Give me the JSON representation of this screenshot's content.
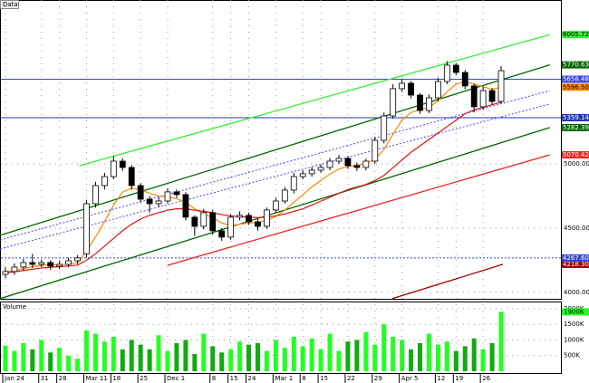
{
  "chart_data": {
    "type": "candlestick",
    "title": "Data",
    "categories": [
      "Jan 24",
      null,
      null,
      null,
      "31",
      null,
      "28",
      null,
      null,
      "Mar 11",
      null,
      null,
      "18",
      null,
      null,
      "25",
      null,
      null,
      "Dec 1",
      null,
      null,
      null,
      null,
      "8",
      null,
      "15",
      null,
      "24",
      null,
      null,
      "Mar 1",
      null,
      null,
      "8",
      null,
      "15",
      null,
      null,
      "22",
      null,
      null,
      "29",
      null,
      null,
      "Apr 5",
      null,
      null,
      null,
      "12",
      null,
      "19",
      null,
      null,
      "26",
      null,
      null
    ],
    "open": [
      4140,
      4162,
      4197,
      4232,
      4218,
      4232,
      4204,
      4218,
      4246,
      4300,
      4690,
      4831,
      4901,
      5021,
      4972,
      4831,
      4725,
      4690,
      4711,
      4782,
      4761,
      4585,
      4514,
      4620,
      4479,
      4430,
      4585,
      4599,
      4549,
      4514,
      4641,
      4711,
      4796,
      4901,
      4923,
      4951,
      4972,
      5021,
      5042,
      4986,
      4972,
      5021,
      5183,
      5373,
      5585,
      5627,
      5535,
      5415,
      5514,
      5641,
      5768,
      5711,
      5606,
      5444,
      5570,
      5486
    ],
    "high": [
      4195,
      4225,
      4260,
      4300,
      4255,
      4250,
      4245,
      4270,
      4290,
      4720,
      4860,
      4930,
      5060,
      5045,
      4990,
      4850,
      4750,
      4740,
      4810,
      4800,
      4780,
      4600,
      4650,
      4640,
      4500,
      4610,
      4630,
      4620,
      4570,
      4660,
      4735,
      4820,
      4930,
      4950,
      4975,
      4995,
      5045,
      5070,
      5060,
      5010,
      5040,
      5210,
      5400,
      5620,
      5660,
      5645,
      5550,
      5540,
      5670,
      5800,
      5785,
      5730,
      5625,
      5600,
      5590,
      5760
    ],
    "low": [
      4110,
      4135,
      4170,
      4190,
      4195,
      4175,
      4180,
      4195,
      4220,
      4270,
      4660,
      4800,
      4880,
      4945,
      4800,
      4700,
      4620,
      4665,
      4690,
      4735,
      4560,
      4440,
      4490,
      4450,
      4400,
      4410,
      4560,
      4525,
      4480,
      4495,
      4620,
      4690,
      4770,
      4880,
      4900,
      4930,
      4950,
      5000,
      4960,
      4945,
      4950,
      5000,
      5160,
      5350,
      5560,
      5510,
      5390,
      5395,
      5490,
      5620,
      5690,
      5580,
      5400,
      5420,
      5460,
      5470
    ],
    "close": [
      4162,
      4197,
      4232,
      4218,
      4232,
      4204,
      4218,
      4246,
      4268,
      4690,
      4831,
      4901,
      5021,
      4972,
      4831,
      4725,
      4690,
      4711,
      4782,
      4761,
      4585,
      4514,
      4620,
      4479,
      4430,
      4585,
      4599,
      4549,
      4514,
      4641,
      4711,
      4796,
      4901,
      4923,
      4951,
      4972,
      5021,
      5042,
      4986,
      4972,
      5021,
      5183,
      5373,
      5585,
      5627,
      5535,
      5415,
      5514,
      5641,
      5768,
      5711,
      5606,
      5444,
      5570,
      5486,
      5725
    ],
    "ylim": [
      3950,
      6275
    ],
    "yticks": [
      {
        "value": 4000,
        "label": "4000.0000"
      },
      {
        "value": 4500,
        "label": "4500.0000"
      },
      {
        "value": 5000,
        "label": "5000.0000"
      }
    ],
    "grid": true,
    "overlays": [
      {
        "color": "#ff8800",
        "label": "5596.5000",
        "values": [
          4160,
          4170,
          4185,
          4200,
          4210,
          4215,
          4215,
          4220,
          4230,
          4320,
          4430,
          4550,
          4680,
          4780,
          4810,
          4800,
          4770,
          4750,
          4740,
          4730,
          4700,
          4650,
          4610,
          4580,
          4540,
          4520,
          4530,
          4540,
          4545,
          4560,
          4590,
          4640,
          4700,
          4760,
          4820,
          4870,
          4920,
          4960,
          4980,
          4990,
          5000,
          5040,
          5110,
          5230,
          5340,
          5400,
          5420,
          5440,
          5490,
          5560,
          5620,
          5640,
          5620,
          5600,
          5580,
          5596.5
        ]
      },
      {
        "color": "#dd1111",
        "values": [
          4150,
          4160,
          4170,
          4180,
          4190,
          4195,
          4200,
          4205,
          4212,
          4250,
          4300,
          4360,
          4420,
          4480,
          4530,
          4570,
          4600,
          4620,
          4640,
          4650,
          4650,
          4640,
          4630,
          4620,
          4605,
          4595,
          4590,
          4585,
          4582,
          4585,
          4595,
          4610,
          4630,
          4650,
          4680,
          4710,
          4740,
          4770,
          4800,
          4820,
          4840,
          4870,
          4910,
          4970,
          5030,
          5090,
          5140,
          5190,
          5240,
          5290,
          5340,
          5390,
          5420,
          5440,
          5460,
          5480
        ]
      }
    ],
    "trend_lines": [
      {
        "color": "#33ee33",
        "x": [
          8.2,
          60.4
        ],
        "values": [
          4986,
          6005.7232
        ],
        "label": "6005.7232"
      },
      {
        "color": "#006600",
        "x": [
          -0.6,
          60.4
        ],
        "values": [
          4444,
          5770.6335
        ],
        "label": "5770.6335"
      },
      {
        "color": "#006600",
        "x": [
          -0.6,
          60.4
        ],
        "values": [
          3951,
          5282.3944
        ],
        "label": "5282.3944"
      },
      {
        "color": "#ee2222",
        "x": [
          18,
          60.4
        ],
        "values": [
          4211,
          5070.4225
        ],
        "label": "5070.4225"
      },
      {
        "color": "#4444ff",
        "dash": true,
        "x": [
          -0.6,
          60.4
        ],
        "values": [
          4408,
          5570
        ]
      },
      {
        "color": "#4444ff",
        "dash": true,
        "x": [
          -0.6,
          60.4
        ],
        "values": [
          4338,
          5465
        ]
      },
      {
        "color": "#990000",
        "x": [
          42.9,
          55.2
        ],
        "values": [
          3951,
          4218.3099
        ],
        "label": "4218.3099"
      }
    ],
    "levels": [
      {
        "color": "#3344dd",
        "value": 5658.4846,
        "label": "5658.4846"
      },
      {
        "color": "#2233bb",
        "value": 5359.14,
        "label": "5359.1400"
      },
      {
        "color": "#3344dd",
        "dash": true,
        "value": 4267.6056,
        "label": "4267.6056"
      }
    ],
    "volume": {
      "name": "Volume",
      "up_color": "#22ff22",
      "down_color": "#11aa11",
      "values": [
        820,
        650,
        900,
        700,
        1000,
        600,
        750,
        500,
        400,
        1300,
        1200,
        950,
        1100,
        700,
        1000,
        850,
        700,
        1150,
        650,
        900,
        1000,
        550,
        1200,
        800,
        600,
        700,
        950,
        850,
        900,
        650,
        1000,
        750,
        1100,
        800,
        1050,
        700,
        1200,
        650,
        950,
        1000,
        1250,
        850,
        1500,
        1100,
        1000,
        700,
        900,
        1200,
        850,
        950,
        650,
        800,
        1050,
        700,
        900,
        1900
      ],
      "value_labels": [
        null,
        null,
        null,
        null,
        null,
        null,
        null,
        null,
        null,
        null,
        null,
        null,
        null,
        null,
        null,
        null,
        null,
        null,
        null,
        null,
        null,
        null,
        null,
        null,
        null,
        null,
        null,
        null,
        null,
        null,
        null,
        null,
        null,
        null,
        null,
        null,
        null,
        null,
        null,
        null,
        null,
        null,
        null,
        null,
        null,
        null,
        null,
        null,
        null,
        null,
        null,
        null,
        null,
        null,
        null,
        "1900K"
      ],
      "ylim": [
        0,
        2230
      ],
      "yticks": [
        {
          "value": 500,
          "label": "500K"
        },
        {
          "value": 1000,
          "label": "1000K"
        },
        {
          "value": 1500,
          "label": "1500K"
        },
        {
          "value": 2000,
          "label": "2000K"
        }
      ]
    }
  }
}
